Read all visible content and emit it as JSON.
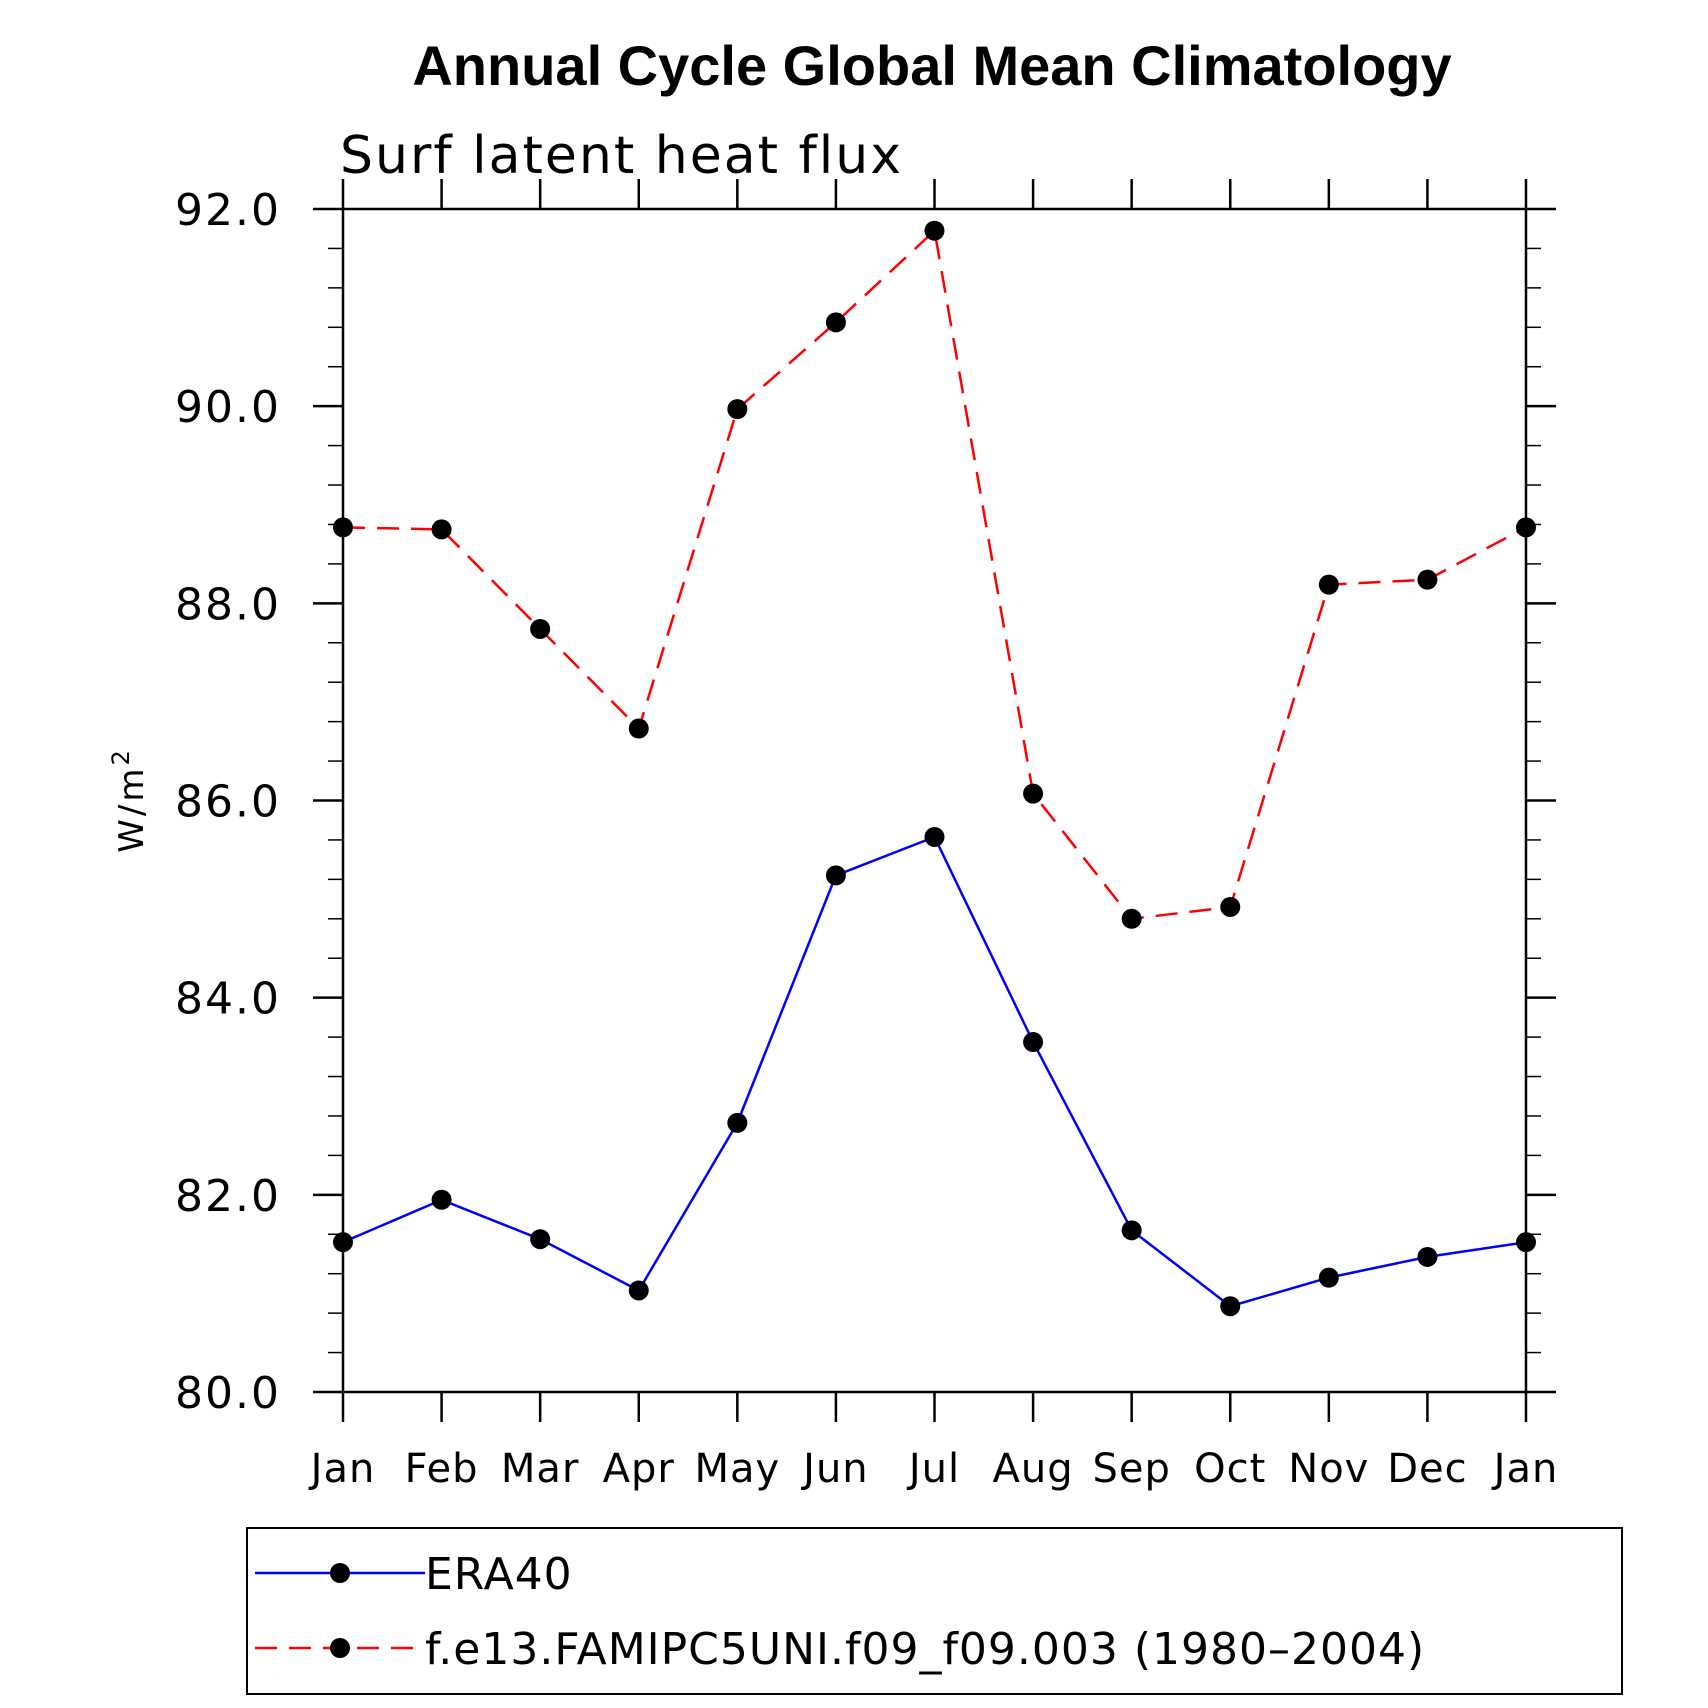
{
  "chart_data": {
    "type": "line",
    "title": "Annual Cycle Global Mean Climatology",
    "subtitle": "Surf latent heat flux",
    "xlabel": "",
    "ylabel": "W/m",
    "ylabel_superscript": "2",
    "ylim": [
      80.0,
      92.0
    ],
    "yticks": [
      "80.0",
      "82.0",
      "84.0",
      "86.0",
      "88.0",
      "90.0",
      "92.0"
    ],
    "categories": [
      "Jan",
      "Feb",
      "Mar",
      "Apr",
      "May",
      "Jun",
      "Jul",
      "Aug",
      "Sep",
      "Oct",
      "Nov",
      "Dec",
      "Jan"
    ],
    "legend_position": "bottom",
    "series": [
      {
        "name": "ERA40",
        "color": "#0000ff",
        "line_style": "solid",
        "marker": "filled-circle",
        "values": [
          81.52,
          81.95,
          81.55,
          81.03,
          82.73,
          85.24,
          85.63,
          83.55,
          81.64,
          80.87,
          81.16,
          81.37,
          81.52
        ]
      },
      {
        "name": "f.e13.FAMIPC5UNI.f09_f09.003 (1980–2004)",
        "color": "#ff0000",
        "line_style": "dashed",
        "marker": "filled-circle",
        "values": [
          88.77,
          88.75,
          87.74,
          86.73,
          89.97,
          90.85,
          91.78,
          86.07,
          84.8,
          84.92,
          88.19,
          88.24,
          88.77
        ]
      }
    ]
  }
}
